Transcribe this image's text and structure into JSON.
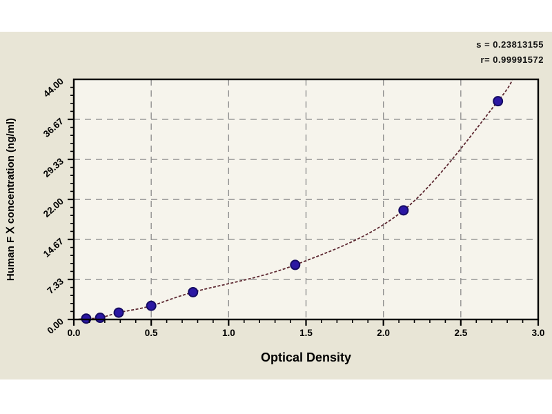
{
  "panel": {
    "background": "#e8e5d6",
    "plot_background": "#f6f4ec"
  },
  "annotation": {
    "s": "s = 0.23813155",
    "r": "r= 0.99991572"
  },
  "axes": {
    "x_title": "Optical Density",
    "y_title": "Human F Ⅹ concentration (ng/ml)"
  },
  "chart_data": {
    "type": "scatter",
    "title": "",
    "xlabel": "Optical Density",
    "ylabel": "Human F X concentration (ng/ml)",
    "xlim": [
      0.0,
      3.0
    ],
    "ylim": [
      0.0,
      44.0
    ],
    "x_ticks": [
      0.0,
      0.5,
      1.0,
      1.5,
      2.0,
      2.5,
      3.0
    ],
    "x_tick_labels": [
      "0.0",
      "0.5",
      "1.0",
      "1.5",
      "2.0",
      "2.5",
      "3.0"
    ],
    "x_minor_step": 0.1,
    "y_ticks": [
      0.0,
      7.33,
      14.67,
      22.0,
      29.33,
      36.67,
      44.0
    ],
    "y_tick_labels": [
      "0.00",
      "7.33",
      "14.67",
      "22.00",
      "29.33",
      "36.67",
      "44.00"
    ],
    "y_minor_step": 1.46667,
    "grid": "dashed gray lines at interior major ticks",
    "legend": "none",
    "points": {
      "x": [
        0.08,
        0.17,
        0.29,
        0.5,
        0.77,
        1.43,
        2.13,
        2.74
      ],
      "y": [
        0.16,
        0.31,
        1.25,
        2.5,
        5.0,
        10.0,
        20.0,
        40.0
      ]
    },
    "fit_curve": {
      "type": "exponential standard curve through points",
      "s": "0.23813155",
      "r": "0.99991572",
      "start": [
        0.03,
        0.05
      ],
      "end": [
        2.84,
        44.8
      ]
    },
    "colors": {
      "point_fill": "#2b17a3",
      "point_stroke": "#150b62",
      "curve": "#5d2831",
      "grid": "#909090",
      "axis": "#000000"
    }
  }
}
